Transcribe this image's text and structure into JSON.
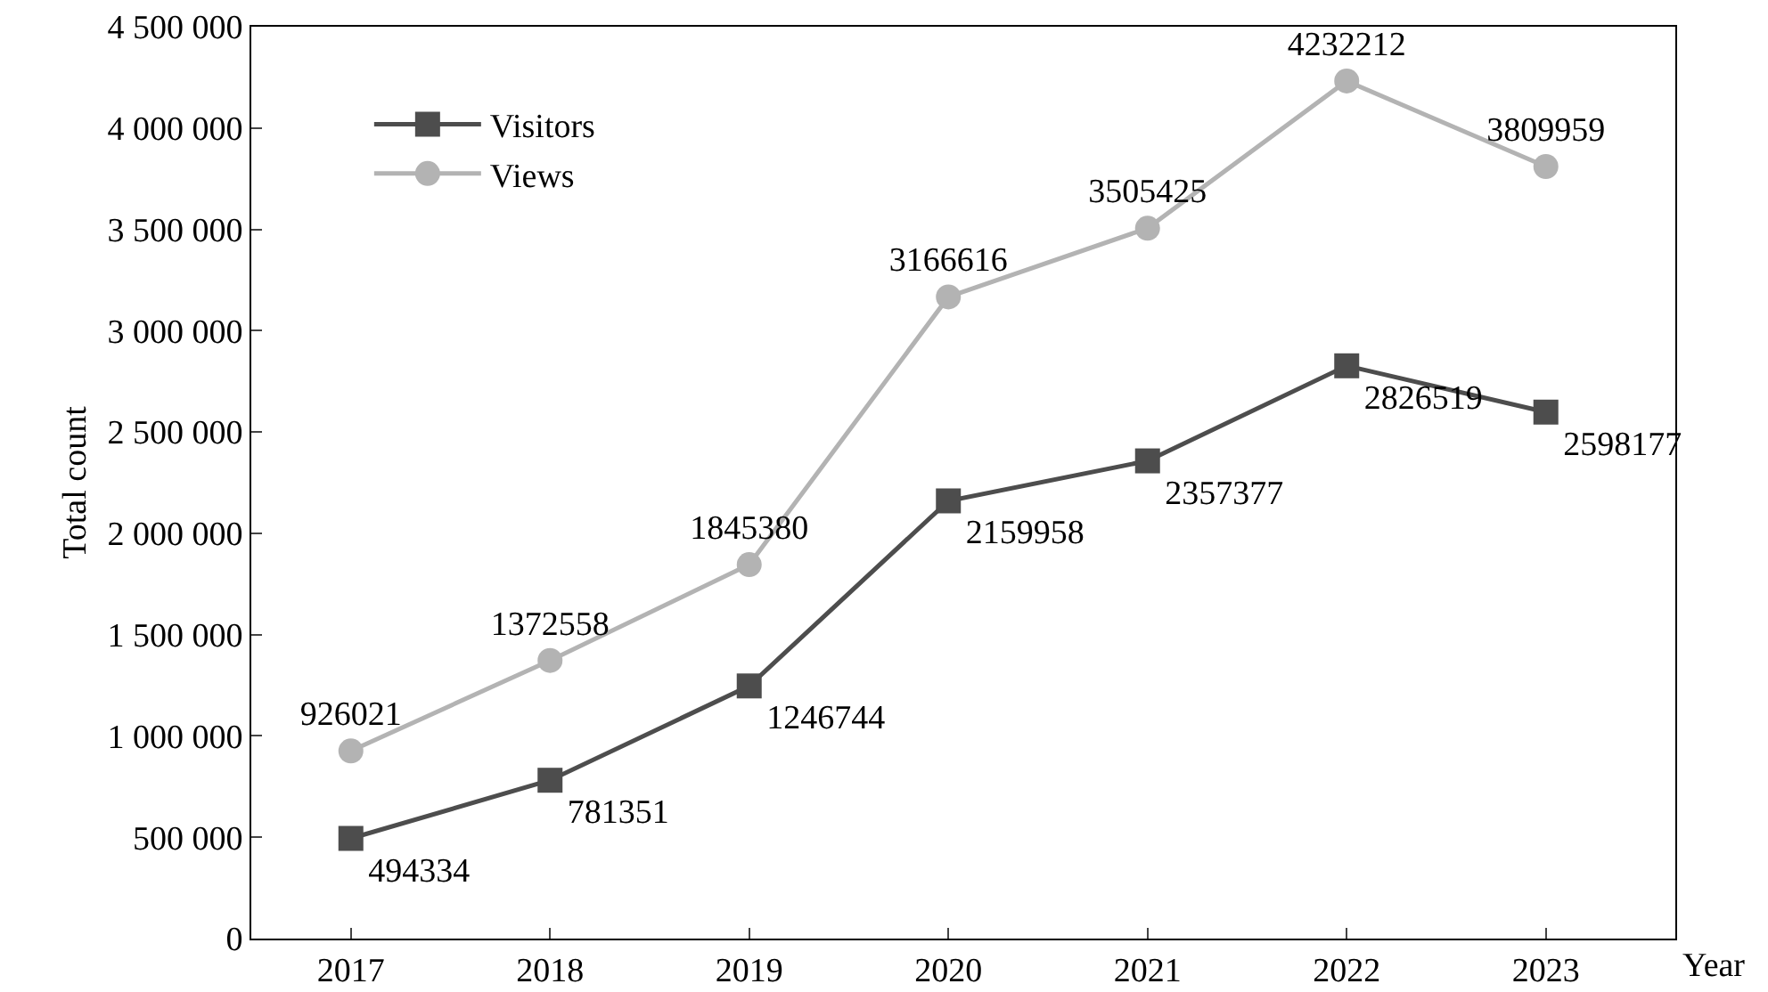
{
  "chart_data": {
    "type": "line",
    "xlabel": "Year",
    "ylabel": "Total count",
    "x": [
      2017,
      2018,
      2019,
      2020,
      2021,
      2022,
      2023
    ],
    "series": [
      {
        "name": "Visitors",
        "color": "#4d4d4d",
        "marker": "square",
        "values": [
          494334,
          781351,
          1246744,
          2159958,
          2357377,
          2826519,
          2598177
        ]
      },
      {
        "name": "Views",
        "color": "#b3b3b3",
        "marker": "circle",
        "values": [
          926021,
          1372558,
          1845380,
          3166616,
          3505425,
          4232212,
          3809959
        ]
      }
    ],
    "xlim": [
      2016.5,
      2023.65
    ],
    "xticks": [
      2017,
      2018,
      2019,
      2020,
      2021,
      2022,
      2023
    ],
    "ylim": [
      0,
      4500000
    ],
    "yticks": [
      0,
      {
        "value": 500000,
        "label": "500 000"
      },
      {
        "value": 1000000,
        "label": "1 000 000"
      },
      {
        "value": 1500000,
        "label": "1 500 000"
      },
      {
        "value": 2000000,
        "label": "2 000 000"
      },
      {
        "value": 2500000,
        "label": "2 500 000"
      },
      {
        "value": 3000000,
        "label": "3 000 000"
      },
      {
        "value": 3500000,
        "label": "3 500 000"
      },
      {
        "value": 4000000,
        "label": "4 000 000"
      },
      {
        "value": 4500000,
        "label": "4 500 000"
      }
    ],
    "data_labels": true,
    "legend": "top left",
    "grid": false,
    "line_style": "solid"
  }
}
